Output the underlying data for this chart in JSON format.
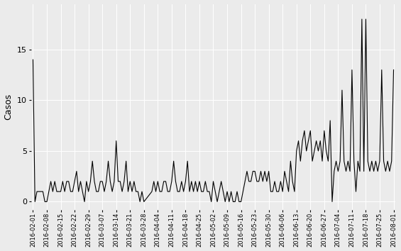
{
  "dates_and_values": [
    [
      "2016-02-01",
      14
    ],
    [
      "2016-02-02",
      0
    ],
    [
      "2016-02-03",
      1
    ],
    [
      "2016-02-04",
      1
    ],
    [
      "2016-02-05",
      1
    ],
    [
      "2016-02-06",
      1
    ],
    [
      "2016-02-07",
      0
    ],
    [
      "2016-02-08",
      0
    ],
    [
      "2016-02-09",
      1
    ],
    [
      "2016-02-10",
      2
    ],
    [
      "2016-02-11",
      1
    ],
    [
      "2016-02-12",
      2
    ],
    [
      "2016-02-13",
      1
    ],
    [
      "2016-02-14",
      1
    ],
    [
      "2016-02-15",
      1
    ],
    [
      "2016-02-16",
      2
    ],
    [
      "2016-02-17",
      1
    ],
    [
      "2016-02-18",
      2
    ],
    [
      "2016-02-19",
      2
    ],
    [
      "2016-02-20",
      1
    ],
    [
      "2016-02-21",
      1
    ],
    [
      "2016-02-22",
      2
    ],
    [
      "2016-02-23",
      3
    ],
    [
      "2016-02-24",
      1
    ],
    [
      "2016-02-25",
      2
    ],
    [
      "2016-02-26",
      1
    ],
    [
      "2016-02-27",
      0
    ],
    [
      "2016-02-28",
      2
    ],
    [
      "2016-02-29",
      1
    ],
    [
      "2016-03-01",
      2
    ],
    [
      "2016-03-02",
      4
    ],
    [
      "2016-03-03",
      2
    ],
    [
      "2016-03-04",
      1
    ],
    [
      "2016-03-05",
      1
    ],
    [
      "2016-03-06",
      2
    ],
    [
      "2016-03-07",
      2
    ],
    [
      "2016-03-08",
      1
    ],
    [
      "2016-03-09",
      2
    ],
    [
      "2016-03-10",
      4
    ],
    [
      "2016-03-11",
      2
    ],
    [
      "2016-03-12",
      1
    ],
    [
      "2016-03-13",
      2
    ],
    [
      "2016-03-14",
      6
    ],
    [
      "2016-03-15",
      2
    ],
    [
      "2016-03-16",
      2
    ],
    [
      "2016-03-17",
      1
    ],
    [
      "2016-03-18",
      2
    ],
    [
      "2016-03-19",
      4
    ],
    [
      "2016-03-20",
      1
    ],
    [
      "2016-03-21",
      2
    ],
    [
      "2016-03-22",
      1
    ],
    [
      "2016-03-23",
      2
    ],
    [
      "2016-03-24",
      1
    ],
    [
      "2016-03-25",
      1
    ],
    [
      "2016-03-26",
      0
    ],
    [
      "2016-03-27",
      1
    ],
    [
      "2016-03-28",
      0
    ],
    [
      "2016-04-01",
      1
    ],
    [
      "2016-04-02",
      2
    ],
    [
      "2016-04-03",
      1
    ],
    [
      "2016-04-04",
      2
    ],
    [
      "2016-04-05",
      1
    ],
    [
      "2016-04-06",
      1
    ],
    [
      "2016-04-07",
      2
    ],
    [
      "2016-04-08",
      2
    ],
    [
      "2016-04-09",
      1
    ],
    [
      "2016-04-10",
      1
    ],
    [
      "2016-04-11",
      2
    ],
    [
      "2016-04-12",
      4
    ],
    [
      "2016-04-13",
      2
    ],
    [
      "2016-04-14",
      1
    ],
    [
      "2016-04-15",
      1
    ],
    [
      "2016-04-16",
      2
    ],
    [
      "2016-04-17",
      1
    ],
    [
      "2016-04-18",
      2
    ],
    [
      "2016-04-19",
      4
    ],
    [
      "2016-04-20",
      1
    ],
    [
      "2016-04-21",
      2
    ],
    [
      "2016-04-22",
      1
    ],
    [
      "2016-04-23",
      2
    ],
    [
      "2016-04-24",
      1
    ],
    [
      "2016-04-25",
      2
    ],
    [
      "2016-04-26",
      1
    ],
    [
      "2016-04-27",
      1
    ],
    [
      "2016-04-28",
      2
    ],
    [
      "2016-04-29",
      1
    ],
    [
      "2016-04-30",
      1
    ],
    [
      "2016-05-01",
      0
    ],
    [
      "2016-05-02",
      2
    ],
    [
      "2016-05-03",
      1
    ],
    [
      "2016-05-04",
      0
    ],
    [
      "2016-05-05",
      1
    ],
    [
      "2016-05-06",
      2
    ],
    [
      "2016-05-07",
      1
    ],
    [
      "2016-05-08",
      0
    ],
    [
      "2016-05-09",
      1
    ],
    [
      "2016-05-10",
      0
    ],
    [
      "2016-05-11",
      1
    ],
    [
      "2016-05-12",
      0
    ],
    [
      "2016-05-13",
      0
    ],
    [
      "2016-05-14",
      1
    ],
    [
      "2016-05-15",
      0
    ],
    [
      "2016-05-16",
      0
    ],
    [
      "2016-05-17",
      1
    ],
    [
      "2016-05-18",
      2
    ],
    [
      "2016-05-19",
      3
    ],
    [
      "2016-05-20",
      2
    ],
    [
      "2016-05-21",
      2
    ],
    [
      "2016-05-22",
      3
    ],
    [
      "2016-05-23",
      3
    ],
    [
      "2016-05-24",
      2
    ],
    [
      "2016-05-25",
      2
    ],
    [
      "2016-05-26",
      3
    ],
    [
      "2016-05-27",
      2
    ],
    [
      "2016-05-28",
      3
    ],
    [
      "2016-05-29",
      2
    ],
    [
      "2016-05-30",
      3
    ],
    [
      "2016-05-31",
      1
    ],
    [
      "2016-06-01",
      1
    ],
    [
      "2016-06-02",
      2
    ],
    [
      "2016-06-03",
      1
    ],
    [
      "2016-06-04",
      1
    ],
    [
      "2016-06-05",
      2
    ],
    [
      "2016-06-06",
      1
    ],
    [
      "2016-06-07",
      3
    ],
    [
      "2016-06-08",
      2
    ],
    [
      "2016-06-09",
      1
    ],
    [
      "2016-06-10",
      4
    ],
    [
      "2016-06-11",
      2
    ],
    [
      "2016-06-12",
      1
    ],
    [
      "2016-06-13",
      5
    ],
    [
      "2016-06-14",
      6
    ],
    [
      "2016-06-15",
      4
    ],
    [
      "2016-06-16",
      6
    ],
    [
      "2016-06-17",
      7
    ],
    [
      "2016-06-18",
      5
    ],
    [
      "2016-06-19",
      6
    ],
    [
      "2016-06-20",
      7
    ],
    [
      "2016-06-21",
      4
    ],
    [
      "2016-06-22",
      5
    ],
    [
      "2016-06-23",
      6
    ],
    [
      "2016-06-24",
      5
    ],
    [
      "2016-06-25",
      6
    ],
    [
      "2016-06-26",
      4
    ],
    [
      "2016-06-27",
      7
    ],
    [
      "2016-06-28",
      5
    ],
    [
      "2016-06-29",
      4
    ],
    [
      "2016-06-30",
      8
    ],
    [
      "2016-07-01",
      0
    ],
    [
      "2016-07-02",
      3
    ],
    [
      "2016-07-03",
      4
    ],
    [
      "2016-07-04",
      3
    ],
    [
      "2016-07-05",
      4
    ],
    [
      "2016-07-06",
      11
    ],
    [
      "2016-07-07",
      4
    ],
    [
      "2016-07-08",
      3
    ],
    [
      "2016-07-09",
      4
    ],
    [
      "2016-07-10",
      3
    ],
    [
      "2016-07-11",
      13
    ],
    [
      "2016-07-12",
      4
    ],
    [
      "2016-07-13",
      1
    ],
    [
      "2016-07-14",
      4
    ],
    [
      "2016-07-15",
      3
    ],
    [
      "2016-07-16",
      18
    ],
    [
      "2016-07-17",
      3
    ],
    [
      "2016-07-18",
      18
    ],
    [
      "2016-07-19",
      4
    ],
    [
      "2016-07-20",
      3
    ],
    [
      "2016-07-21",
      4
    ],
    [
      "2016-07-22",
      3
    ],
    [
      "2016-07-23",
      4
    ],
    [
      "2016-07-24",
      3
    ],
    [
      "2016-07-25",
      4
    ],
    [
      "2016-07-26",
      13
    ],
    [
      "2016-07-27",
      4
    ],
    [
      "2016-07-28",
      3
    ],
    [
      "2016-07-29",
      4
    ],
    [
      "2016-07-30",
      3
    ],
    [
      "2016-07-31",
      4
    ],
    [
      "2016-08-01",
      13
    ]
  ],
  "xtick_labels": [
    "2016-02-01",
    "2016-02-08",
    "2016-02-15",
    "2016-02-22",
    "2016-02-29",
    "2016-03-07",
    "2016-03-14",
    "2016-03-21",
    "2016-03-28",
    "2016-04-04",
    "2016-04-11",
    "2016-04-18",
    "2016-04-25",
    "2016-05-02",
    "2016-05-09",
    "2016-05-16",
    "2016-05-23",
    "2016-05-30",
    "2016-06-06",
    "2016-06-13",
    "2016-06-20",
    "2016-06-27",
    "2016-07-04",
    "2016-07-11",
    "2016-07-18",
    "2016-07-25",
    "2016-08-01"
  ],
  "ylabel": "Casos",
  "yticks": [
    0,
    5,
    10,
    15
  ],
  "line_color": "#000000",
  "bg_color": "#EBEBEB",
  "grid_color": "#FFFFFF",
  "ylim": [
    -0.8,
    19.5
  ]
}
